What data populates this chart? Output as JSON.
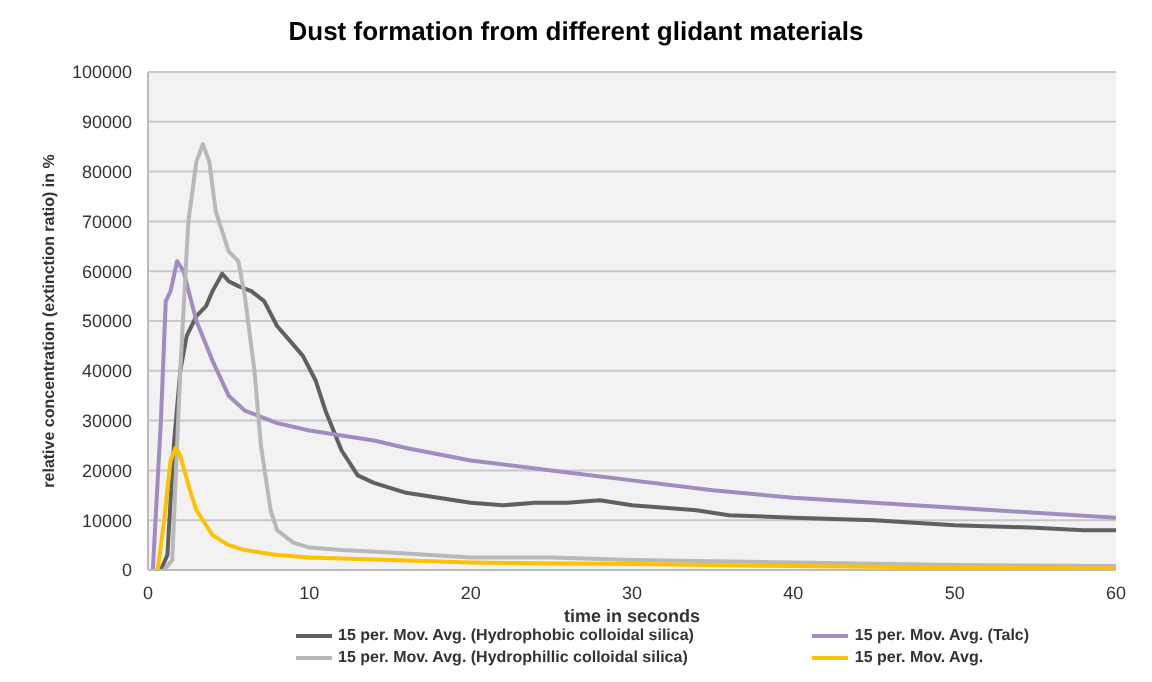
{
  "chart_data": {
    "type": "line",
    "title": "Dust formation from different glidant materials",
    "xlabel": "time in seconds",
    "ylabel": "relative concentration (extinction ratio)  in %",
    "xlim": [
      0,
      60
    ],
    "xticks": [
      0,
      10,
      20,
      30,
      40,
      50,
      60
    ],
    "ylim": [
      0,
      100000
    ],
    "yticks": [
      0,
      10000,
      20000,
      30000,
      40000,
      50000,
      60000,
      70000,
      80000,
      90000,
      100000
    ],
    "grid": "y",
    "legend": "bottom",
    "marker": "none",
    "line_style": "solid",
    "series": [
      {
        "name": "15 per. Mov. Avg. (Hydrophobic colloidal silica)",
        "color": "#606060",
        "x": [
          0.8,
          1.2,
          1.6,
          2,
          2.4,
          3,
          3.6,
          4,
          4.6,
          5,
          5.6,
          6.4,
          7.2,
          8,
          8.8,
          9.6,
          10.4,
          11,
          12,
          13,
          14,
          16,
          18,
          20,
          22,
          24,
          26,
          28,
          30,
          32,
          34,
          36,
          40,
          45,
          50,
          55,
          58,
          60
        ],
        "values": [
          0,
          3000,
          25000,
          40000,
          47000,
          51000,
          53000,
          56000,
          59500,
          58000,
          57000,
          56000,
          54000,
          49000,
          46000,
          43000,
          38000,
          32000,
          24000,
          19000,
          17500,
          15500,
          14500,
          13500,
          13000,
          13500,
          13500,
          14000,
          13000,
          12500,
          12000,
          11000,
          10500,
          10000,
          9000,
          8500,
          8000,
          8000
        ]
      },
      {
        "name": "15 per. Mov. Avg. (Talc)",
        "color": "#a08cc0",
        "x": [
          0.3,
          0.8,
          1.1,
          1.4,
          1.8,
          2.2,
          3,
          4,
          5,
          6,
          8,
          10,
          12,
          14,
          16,
          20,
          25,
          30,
          35,
          40,
          45,
          50,
          55,
          60
        ],
        "values": [
          0,
          30000,
          54000,
          56000,
          62000,
          60000,
          50000,
          42000,
          35000,
          32000,
          29500,
          28000,
          27000,
          26000,
          24500,
          22000,
          20000,
          18000,
          16000,
          14500,
          13500,
          12500,
          11500,
          10500
        ]
      },
      {
        "name": "15 per. Mov. Avg. (Hydrophillic colloidal silica)",
        "color": "#b8b8b8",
        "x": [
          1,
          1.5,
          2,
          2.5,
          3,
          3.4,
          3.8,
          4.2,
          4.6,
          5,
          5.6,
          6,
          6.6,
          7,
          7.6,
          8,
          9,
          10,
          12,
          15,
          20,
          25,
          30,
          40,
          50,
          60
        ],
        "values": [
          0,
          2000,
          40000,
          70000,
          82000,
          85500,
          82000,
          72000,
          68000,
          64000,
          62000,
          55000,
          40000,
          25000,
          12000,
          8000,
          5500,
          4500,
          4000,
          3500,
          2500,
          2500,
          2000,
          1500,
          1000,
          800
        ]
      },
      {
        "name": "15 per. Mov. Avg.",
        "color": "#ffc000",
        "x": [
          0.6,
          1,
          1.4,
          1.7,
          2,
          2.6,
          3,
          4,
          5,
          6,
          8,
          10,
          15,
          20,
          30,
          40,
          50,
          60
        ],
        "values": [
          0,
          10000,
          22000,
          24500,
          23000,
          16000,
          12000,
          7000,
          5000,
          4000,
          3000,
          2500,
          2000,
          1500,
          1200,
          800,
          500,
          300
        ]
      }
    ]
  }
}
